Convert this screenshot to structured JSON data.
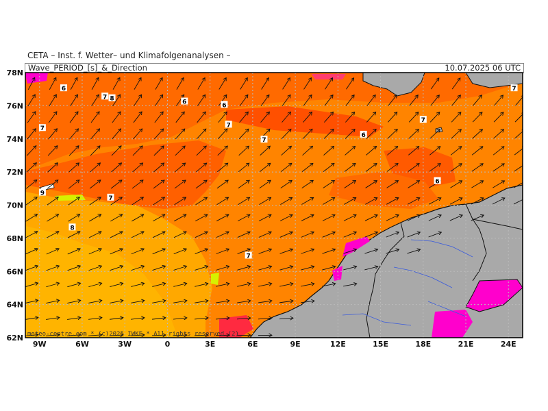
{
  "header": {
    "title": "CETA – Inst. f. Wetter– und Klimafolgenanalysen –",
    "subtitle": "Wave_PERIOD_[s]_&_Direction",
    "timestamp": "10.07.2025 06 UTC"
  },
  "axes": {
    "lat_labels": [
      "78N",
      "76N",
      "74N",
      "72N",
      "70N",
      "68N",
      "66N",
      "64N",
      "62N"
    ],
    "lon_labels": [
      "9W",
      "6W",
      "3W",
      "0",
      "3E",
      "6E",
      "9E",
      "12E",
      "15E",
      "18E",
      "21E",
      "24E"
    ]
  },
  "map_labels": [
    {
      "text": "6",
      "lon": -7.3,
      "lat": 77.0
    },
    {
      "text": "7",
      "lon": -4.4,
      "lat": 76.5
    },
    {
      "text": "8",
      "lon": -3.9,
      "lat": 76.4
    },
    {
      "text": "6",
      "lon": 1.2,
      "lat": 76.2
    },
    {
      "text": "6",
      "lon": 4.0,
      "lat": 76.0
    },
    {
      "text": "7",
      "lon": 4.3,
      "lat": 74.8
    },
    {
      "text": "7",
      "lon": 6.8,
      "lat": 73.9
    },
    {
      "text": "6",
      "lon": 13.8,
      "lat": 74.2
    },
    {
      "text": "7",
      "lon": 18.0,
      "lat": 75.1
    },
    {
      "text": "7",
      "lon": -8.8,
      "lat": 74.6
    },
    {
      "text": "7",
      "lon": 24.4,
      "lat": 77.0
    },
    {
      "text": "6",
      "lon": 19.0,
      "lat": 71.4
    },
    {
      "text": "9",
      "lon": -8.8,
      "lat": 70.7
    },
    {
      "text": "7",
      "lon": -4.0,
      "lat": 70.4
    },
    {
      "text": "8",
      "lon": -6.7,
      "lat": 68.6
    },
    {
      "text": "7",
      "lon": 5.7,
      "lat": 66.9
    }
  ],
  "copyright": "meteo-centre.com * (c)2025 IWKF * All rights reserved (2)",
  "colors": {
    "land": "#a9a9a9",
    "period_6": "#ff6a00",
    "period_6_5": "#ff5800",
    "period_7": "#ff8400",
    "period_8": "#ff9f00",
    "period_9": "#ffb300",
    "period_10": "#ff4a00",
    "period_4": "#ff00cc",
    "grid": "#bbbbbb",
    "river": "#3a5bdc"
  }
}
